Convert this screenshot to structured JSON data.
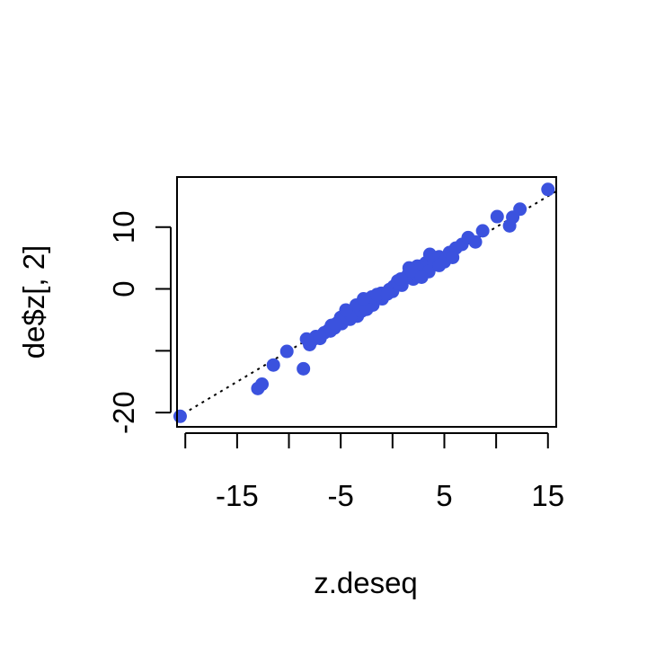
{
  "chart_data": {
    "type": "scatter",
    "title": "",
    "xlabel": "z.deseq",
    "ylabel": "de$z[, 2]",
    "xlim": [
      -20.8,
      15.8
    ],
    "ylim": [
      -22.3,
      18.1
    ],
    "x_ticks": [
      -20,
      -15,
      -10,
      -5,
      0,
      5,
      10,
      15
    ],
    "x_tick_labels": [
      {
        "value": -15,
        "label": "-15"
      },
      {
        "value": -5,
        "label": "-5"
      },
      {
        "value": 5,
        "label": "5"
      },
      {
        "value": 15,
        "label": "15"
      }
    ],
    "y_ticks": [
      -20,
      -10,
      0,
      10
    ],
    "y_tick_labels": [
      {
        "value": -20,
        "label": "-20"
      },
      {
        "value": 0,
        "label": "0"
      },
      {
        "value": 10,
        "label": "10"
      }
    ],
    "reference_line": {
      "slope": 1,
      "intercept": 0,
      "style": "dotted"
    },
    "point_color": "#3b52de",
    "grid": false,
    "x": [
      -20.5,
      -13.0,
      -12.6,
      -11.5,
      -10.2,
      -8.6,
      -8.3,
      -8.0,
      -7.7,
      -7.4,
      -7.0,
      -6.6,
      -6.2,
      -5.9,
      -5.6,
      -5.2,
      -4.9,
      -4.5,
      -4.1,
      -3.8,
      -3.4,
      -3.0,
      -2.6,
      -2.2,
      -1.9,
      -1.5,
      -1.1,
      -0.7,
      -0.3,
      0.1,
      0.5,
      0.9,
      1.2,
      1.6,
      2.0,
      2.4,
      2.8,
      3.2,
      3.6,
      4.0,
      4.5,
      5.0,
      5.5,
      6.1,
      6.7,
      7.3,
      8.0,
      8.7,
      10.1,
      11.3,
      11.6,
      12.3,
      15.0,
      -6.0,
      -5.0,
      -4.0,
      -3.0,
      -2.0,
      -1.0,
      0.0,
      1.0,
      2.0,
      3.0,
      4.0,
      -3.5,
      -2.5,
      -1.5,
      -0.5,
      0.5,
      1.5,
      2.5,
      3.5,
      -4.5,
      1.8,
      2.8,
      -7.0,
      5.8,
      -5.5,
      4.5,
      -2.8,
      0.8
    ],
    "y": [
      -20.6,
      -16.1,
      -15.4,
      -12.3,
      -10.1,
      -12.9,
      -8.1,
      -9.0,
      -8.2,
      -7.7,
      -8.0,
      -7.1,
      -6.7,
      -5.9,
      -6.3,
      -5.3,
      -5.6,
      -4.7,
      -4.9,
      -3.6,
      -4.4,
      -2.9,
      -2.3,
      -2.0,
      -2.6,
      -1.6,
      -0.7,
      -0.9,
      -0.1,
      0.4,
      1.3,
      0.6,
      1.7,
      3.4,
      2.2,
      3.7,
      2.7,
      4.2,
      5.6,
      4.6,
      5.2,
      4.4,
      5.9,
      6.6,
      7.2,
      8.3,
      7.6,
      9.4,
      11.7,
      10.2,
      11.6,
      12.9,
      16.1,
      -6.8,
      -4.6,
      -4.2,
      -3.6,
      -1.3,
      -1.6,
      -0.4,
      1.6,
      1.6,
      3.5,
      3.9,
      -2.6,
      -3.3,
      -0.9,
      -0.8,
      0.9,
      2.3,
      3.1,
      2.8,
      -3.4,
      2.9,
      1.9,
      -7.7,
      5.1,
      -5.7,
      3.8,
      -1.6,
      1.6
    ]
  }
}
